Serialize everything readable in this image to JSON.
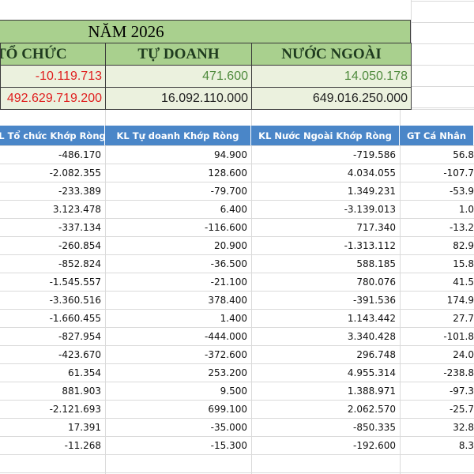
{
  "header": {
    "title": "NĂM 2026",
    "columns": [
      "TỔ CHỨC",
      "TỰ DOANH",
      "NƯỚC NGOÀI"
    ]
  },
  "summary": {
    "rows": [
      [
        "-10.119.713",
        "471.600",
        "14.050.178"
      ],
      [
        "492.629.719.200",
        "16.092.110.000",
        "649.016.250.000"
      ]
    ]
  },
  "table": {
    "columns": [
      "L Tổ chức Khớp Ròng",
      "KL Tự doanh Khớp Ròng",
      "KL Nước Ngoài Khớp Ròng",
      "GT Cá Nhân"
    ],
    "rows": [
      [
        "-486.170",
        "94.900",
        "-719.586",
        "56.8"
      ],
      [
        "-2.082.355",
        "128.600",
        "4.034.055",
        "-107.7"
      ],
      [
        "-233.389",
        "-79.700",
        "1.349.231",
        "-53.9"
      ],
      [
        "3.123.478",
        "6.400",
        "-3.139.013",
        "1.0"
      ],
      [
        "-337.134",
        "-116.600",
        "717.340",
        "-13.2"
      ],
      [
        "-260.854",
        "20.900",
        "-1.313.112",
        "82.9"
      ],
      [
        "-852.824",
        "-36.500",
        "588.185",
        "15.8"
      ],
      [
        "-1.545.557",
        "-21.100",
        "780.076",
        "41.5"
      ],
      [
        "-3.360.516",
        "378.400",
        "-391.536",
        "174.9"
      ],
      [
        "-1.660.455",
        "1.400",
        "1.143.442",
        "27.7"
      ],
      [
        "-827.954",
        "-444.000",
        "3.340.428",
        "-101.8"
      ],
      [
        "-423.670",
        "-372.600",
        "296.748",
        "24.0"
      ],
      [
        "61.354",
        "253.200",
        "4.955.314",
        "-238.8"
      ],
      [
        "881.903",
        "9.500",
        "1.388.971",
        "-97.3"
      ],
      [
        "-2.121.693",
        "699.100",
        "2.062.570",
        "-25.7"
      ],
      [
        "17.391",
        "-35.000",
        "-850.335",
        "32.8"
      ],
      [
        "-11.268",
        "-15.300",
        "-192.600",
        "8.3"
      ]
    ]
  }
}
